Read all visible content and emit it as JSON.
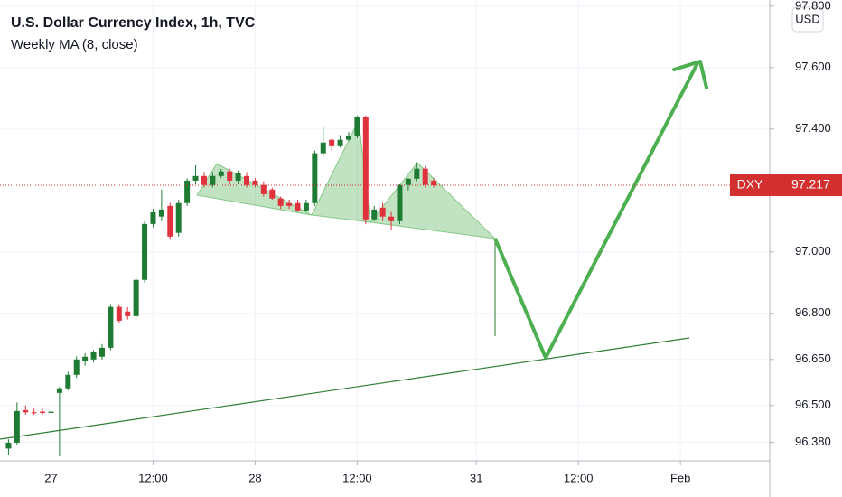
{
  "chart_data": {
    "type": "candlestick",
    "title": "U.S. Dollar Currency Index, 1h, TVC",
    "subtitle": "Weekly MA (8, close)",
    "currency": "USD",
    "last_price": {
      "symbol": "DXY",
      "value": 97.217,
      "label": "97.217",
      "color": "#d32f2f"
    },
    "up_color": "#1e7b34",
    "down_color": "#e0323c",
    "grid": true,
    "xlim": [
      -6,
      84.5
    ],
    "ylim": [
      96.32,
      97.82
    ],
    "xticks": [
      {
        "value": 0,
        "label": "27"
      },
      {
        "value": 12,
        "label": "12:00"
      },
      {
        "value": 24,
        "label": "28"
      },
      {
        "value": 36,
        "label": "12:00"
      },
      {
        "value": 50,
        "label": "31"
      },
      {
        "value": 62,
        "label": "12:00"
      },
      {
        "value": 74,
        "label": "Feb"
      }
    ],
    "yticks": [
      {
        "value": 97.8,
        "label": "97.800"
      },
      {
        "value": 97.6,
        "label": "97.600"
      },
      {
        "value": 97.4,
        "label": "97.400"
      },
      {
        "value": 97.0,
        "label": "97.000"
      },
      {
        "value": 96.8,
        "label": "96.800"
      },
      {
        "value": 96.65,
        "label": "96.650"
      },
      {
        "value": 96.5,
        "label": "96.500"
      },
      {
        "value": 96.38,
        "label": "96.380"
      }
    ],
    "x": [
      -5,
      -4,
      -3,
      -2,
      -1,
      0,
      1,
      2,
      3,
      4,
      5,
      6,
      7,
      8,
      9,
      10,
      11,
      12,
      13,
      14,
      15,
      16,
      17,
      18,
      19,
      20,
      21,
      22,
      23,
      24,
      25,
      26,
      27,
      28,
      29,
      30,
      31,
      32,
      33,
      34,
      35,
      36,
      37,
      38,
      39,
      40,
      41,
      42,
      43,
      44,
      45
    ],
    "open": [
      96.36,
      96.379,
      96.485,
      96.478,
      96.48,
      96.476,
      96.541,
      96.556,
      96.6,
      96.644,
      96.65,
      96.659,
      96.688,
      96.821,
      96.806,
      96.791,
      96.909,
      97.091,
      97.115,
      97.15,
      97.062,
      97.159,
      97.232,
      97.247,
      97.218,
      97.247,
      97.262,
      97.232,
      97.247,
      97.232,
      97.218,
      97.203,
      97.174,
      97.159,
      97.159,
      97.135,
      97.159,
      97.321,
      97.365,
      97.344,
      97.365,
      97.379,
      97.438,
      97.106,
      97.144,
      97.115,
      97.1,
      97.218,
      97.238,
      97.271,
      97.232
    ],
    "high": [
      96.39,
      96.51,
      96.5,
      96.49,
      96.49,
      96.49,
      96.56,
      96.61,
      96.66,
      96.67,
      96.68,
      96.7,
      96.83,
      96.83,
      96.82,
      96.92,
      97.1,
      97.14,
      97.203,
      97.16,
      97.17,
      97.24,
      97.282,
      97.26,
      97.26,
      97.27,
      97.27,
      97.265,
      97.26,
      97.24,
      97.23,
      97.21,
      97.18,
      97.17,
      97.17,
      97.17,
      97.33,
      97.409,
      97.37,
      97.38,
      97.39,
      97.444,
      97.444,
      97.15,
      97.16,
      97.13,
      97.22,
      97.24,
      97.291,
      97.28,
      97.24
    ],
    "low": [
      96.34,
      96.37,
      96.47,
      96.47,
      96.47,
      96.46,
      96.335,
      96.55,
      96.59,
      96.63,
      96.64,
      96.65,
      96.68,
      96.77,
      96.78,
      96.78,
      96.9,
      97.08,
      97.1,
      97.04,
      97.05,
      97.15,
      97.22,
      97.21,
      97.21,
      97.24,
      97.22,
      97.22,
      97.21,
      97.21,
      97.18,
      97.17,
      97.14,
      97.14,
      97.13,
      97.13,
      97.15,
      97.31,
      97.33,
      97.34,
      97.36,
      97.37,
      97.09,
      97.1,
      97.1,
      97.071,
      97.09,
      97.2,
      97.23,
      97.21,
      97.21
    ],
    "close": [
      96.379,
      96.482,
      96.478,
      96.476,
      96.476,
      96.48,
      96.556,
      96.6,
      96.65,
      96.659,
      96.674,
      96.688,
      96.821,
      96.776,
      96.791,
      96.909,
      97.091,
      97.129,
      97.138,
      97.05,
      97.159,
      97.232,
      97.247,
      97.218,
      97.247,
      97.262,
      97.232,
      97.256,
      97.218,
      97.218,
      97.188,
      97.174,
      97.15,
      97.15,
      97.135,
      97.159,
      97.321,
      97.356,
      97.344,
      97.365,
      97.379,
      97.438,
      97.106,
      97.138,
      97.115,
      97.1,
      97.218,
      97.238,
      97.271,
      97.218,
      97.217
    ]
  }
}
